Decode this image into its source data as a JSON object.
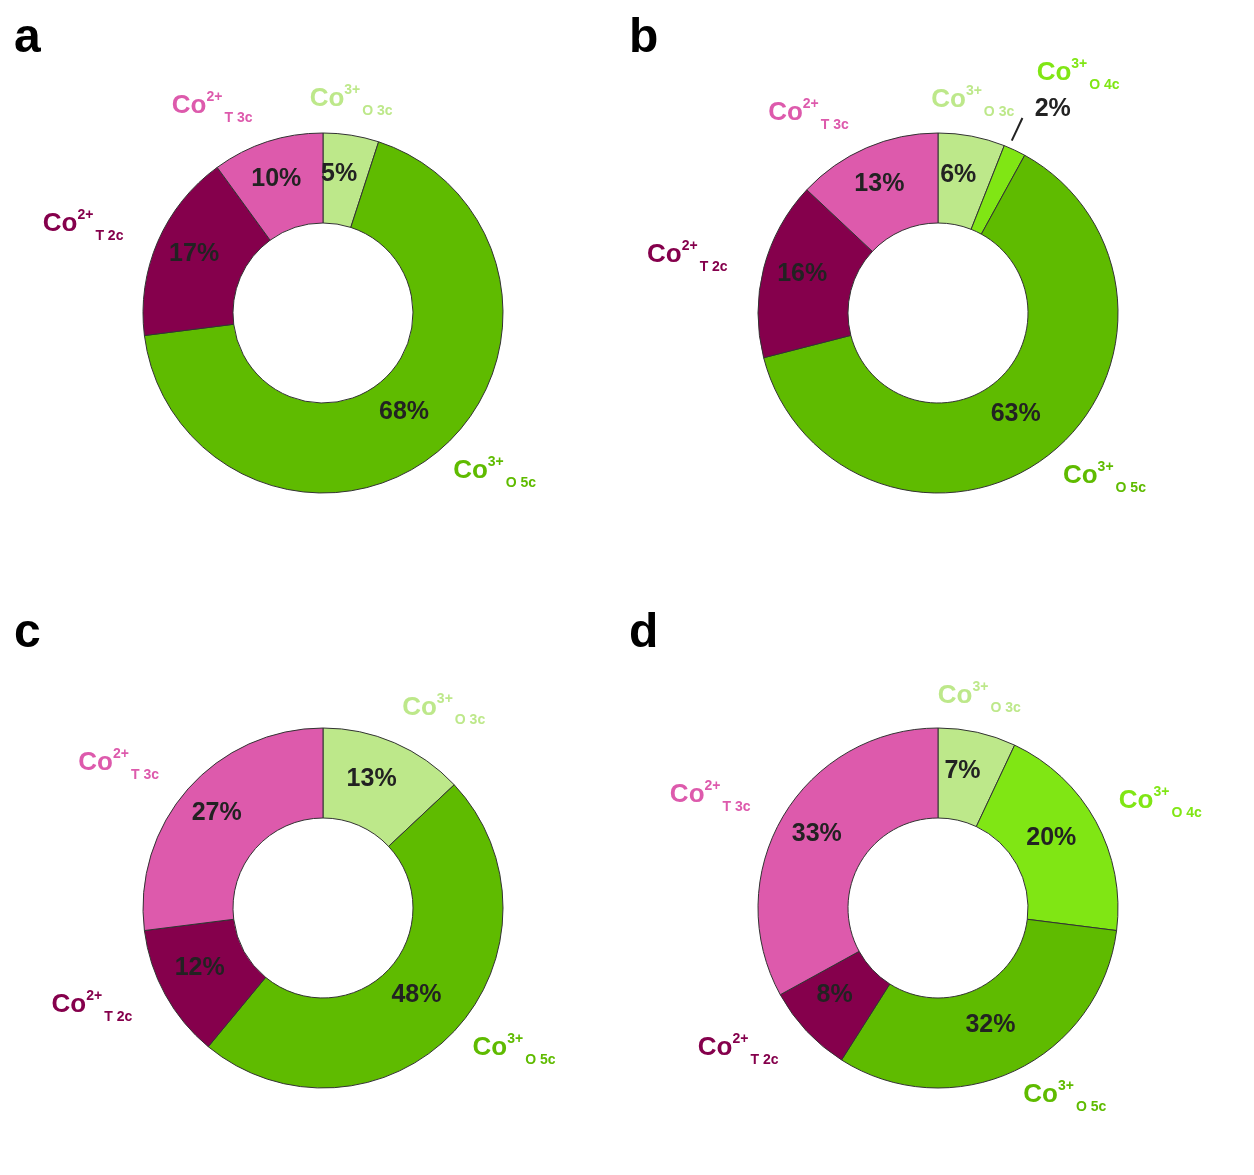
{
  "chart_data": [
    {
      "type": "donut",
      "title": "a",
      "categories": [
        "Co$^{3+}$$_{O 3c}$",
        "Co$^{3+}$$_{O 5c}$",
        "Co$^{2+}$$_{T 2c}$",
        "Co$^{2+}$$_{T 3c}$"
      ],
      "values": [
        5,
        68,
        17,
        10
      ],
      "value_labels": [
        "5%",
        "68%",
        "17%",
        "10%"
      ],
      "colors": [
        "#bde88a",
        "#5fbb00",
        "#85004c",
        "#dd5aac"
      ],
      "legend": false
    },
    {
      "type": "donut",
      "title": "b",
      "categories": [
        "Co$^{3+}$$_{O 3c}$",
        "Co$^{3+}$$_{O 4c}$",
        "Co$^{3+}$$_{O 5c}$",
        "Co$^{2+}$$_{T 2c}$",
        "Co$^{2+}$$_{T 3c}$"
      ],
      "values": [
        6,
        2,
        63,
        16,
        13
      ],
      "value_labels": [
        "6%",
        "2%",
        "63%",
        "16%",
        "13%"
      ],
      "colors": [
        "#bde88a",
        "#80e614",
        "#5fbb00",
        "#85004c",
        "#dd5aac"
      ],
      "legend": false
    },
    {
      "type": "donut",
      "title": "c",
      "categories": [
        "Co$^{3+}$$_{O 3c}$",
        "Co$^{3+}$$_{O 5c}$",
        "Co$^{2+}$$_{T 2c}$",
        "Co$^{2+}$$_{T 3c}$"
      ],
      "values": [
        13,
        48,
        12,
        27
      ],
      "value_labels": [
        "13%",
        "48%",
        "12%",
        "27%"
      ],
      "colors": [
        "#bde88a",
        "#5fbb00",
        "#85004c",
        "#dd5aac"
      ],
      "legend": false
    },
    {
      "type": "donut",
      "title": "d",
      "categories": [
        "Co$^{3+}$$_{O 3c}$",
        "Co$^{3+}$$_{O 4c}$",
        "Co$^{3+}$$_{O 5c}$",
        "Co$^{2+}$$_{T 2c}$",
        "Co$^{2+}$$_{T 3c}$"
      ],
      "values": [
        7,
        20,
        32,
        8,
        33
      ],
      "value_labels": [
        "7%",
        "20%",
        "32%",
        "8%",
        "33%"
      ],
      "colors": [
        "#bde88a",
        "#80e614",
        "#5fbb00",
        "#85004c",
        "#dd5aac"
      ],
      "legend": false
    }
  ]
}
